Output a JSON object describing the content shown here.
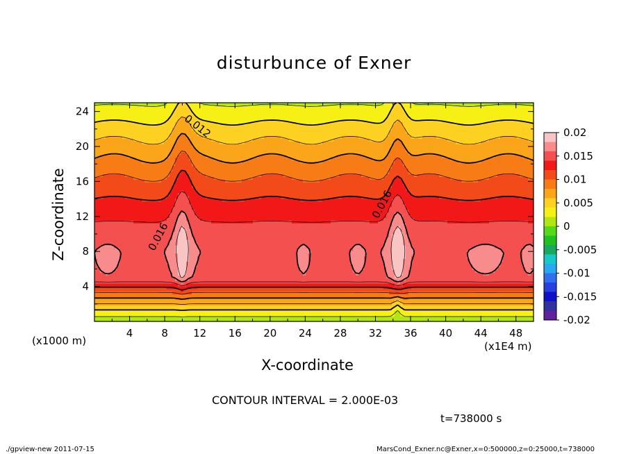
{
  "chart_data": {
    "type": "heatmap",
    "title": "disturbunce of Exner",
    "xlabel": "X-coordinate",
    "ylabel": "Z-coordinate",
    "x_unit_label": "(x1000 m)",
    "x_scale_label": "(x1E4 m)",
    "xlim": [
      0,
      50
    ],
    "ylim": [
      0,
      25
    ],
    "x_ticks": [
      4,
      8,
      12,
      16,
      20,
      24,
      28,
      32,
      36,
      40,
      44,
      48
    ],
    "y_ticks": [
      4,
      8,
      12,
      16,
      20,
      24
    ],
    "colorbar": {
      "ticks": [
        "0.02",
        "0.015",
        "0.01",
        "0.005",
        "0",
        "-0.005",
        "-0.01",
        "-0.015",
        "-0.02"
      ],
      "colors": [
        "#f9c4c4",
        "#f88b8b",
        "#f55050",
        "#f21818",
        "#f34a1a",
        "#f77c16",
        "#faa51a",
        "#fdd122",
        "#f6f014",
        "#b2e610",
        "#55d918",
        "#20c020",
        "#18a860",
        "#18c8c8",
        "#28a8f0",
        "#3070f0",
        "#2840e0",
        "#1010c8",
        "#3030a0",
        "#6020a0"
      ]
    },
    "contour_labels": [
      {
        "text": "0.012",
        "x": 11.5,
        "z": 22.0
      },
      {
        "text": "0.016",
        "x": 7.6,
        "z": 9.5
      },
      {
        "text": "0.016",
        "x": 33.1,
        "z": 13.2
      }
    ],
    "contour_interval": "CONTOUR INTERVAL = 2.000E-03",
    "time": "t=738000 s"
  },
  "footer": {
    "program": "./gpview-new  2011-07-15",
    "source": "MarsCond_Exner.nc@Exner,x=0:500000,z=0:25000,t=738000"
  }
}
